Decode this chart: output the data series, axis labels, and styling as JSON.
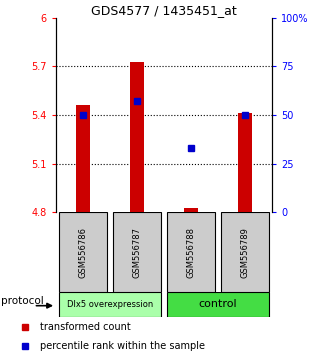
{
  "title": "GDS4577 / 1435451_at",
  "samples": [
    "GSM556786",
    "GSM556787",
    "GSM556788",
    "GSM556789"
  ],
  "bar_values": [
    5.46,
    5.73,
    4.83,
    5.41
  ],
  "bar_base": 4.8,
  "bar_color": "#cc0000",
  "dot_color": "#0000cc",
  "dot_percentiles": [
    50,
    57,
    33,
    50
  ],
  "ylim_left": [
    4.8,
    6.0
  ],
  "ylim_right": [
    0,
    100
  ],
  "yticks_left": [
    4.8,
    5.1,
    5.4,
    5.7,
    6.0
  ],
  "ytick_labels_left": [
    "4.8",
    "5.1",
    "5.4",
    "5.7",
    "6"
  ],
  "yticks_right": [
    0,
    25,
    50,
    75,
    100
  ],
  "ytick_labels_right": [
    "0",
    "25",
    "50",
    "75",
    "100%"
  ],
  "hlines": [
    5.1,
    5.4,
    5.7
  ],
  "groups": [
    {
      "label": "Dlx5 overexpression",
      "samples": [
        0,
        1
      ],
      "color": "#aaffaa"
    },
    {
      "label": "control",
      "samples": [
        2,
        3
      ],
      "color": "#44dd44"
    }
  ],
  "protocol_label": "protocol",
  "legend_red_label": "transformed count",
  "legend_blue_label": "percentile rank within the sample",
  "bg_color": "#ffffff",
  "gray_bg": "#cccccc"
}
